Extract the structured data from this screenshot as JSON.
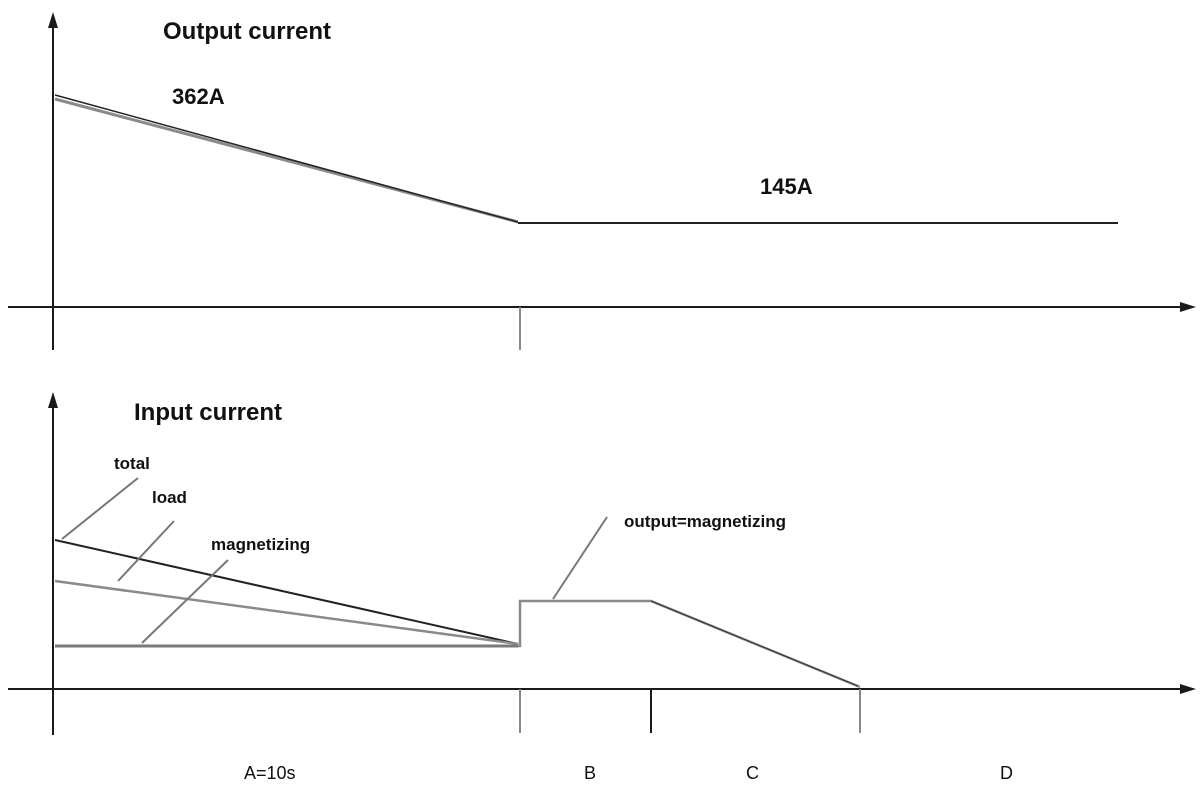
{
  "top_chart": {
    "title": "Output current",
    "peak_label": "362A",
    "steady_label": "145A"
  },
  "bottom_chart": {
    "title": "Input current",
    "legend": {
      "total": "total",
      "load": "load",
      "magnetizing": "magnetizing"
    },
    "annotation": "output=magnetizing"
  },
  "periods": {
    "a": "A=10s",
    "b": "B",
    "c": "C",
    "d": "D"
  },
  "colors": {
    "axis": "#1a1a1a",
    "line_dark": "#222222",
    "line_gray": "#8a8a8a",
    "pointer": "#777777"
  }
}
